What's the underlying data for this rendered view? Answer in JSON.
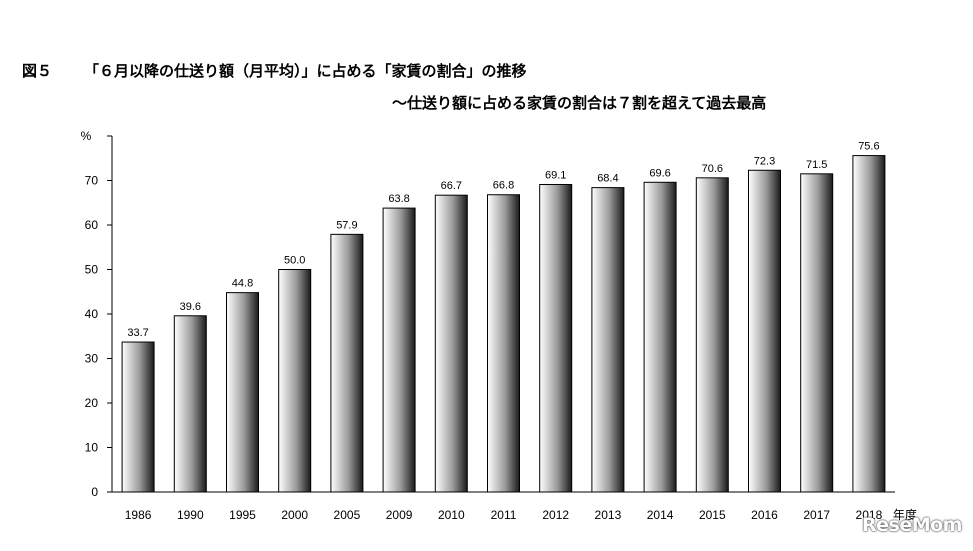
{
  "title": {
    "figure_label": "図５",
    "text": "「６月以降の仕送り額（月平均）」に占める「家賃の割合」の推移"
  },
  "subtitle": "～仕送り額に占める家賃の割合は７割を超えて過去最高",
  "watermark": "ReseMom",
  "colors": {
    "bar_dark": "#1a1a1a",
    "bar_light": "#ffffff",
    "axis": "#000000"
  },
  "chart_data": {
    "type": "bar",
    "ylabel": "%",
    "xlabel": "年度",
    "ylim": [
      0,
      80
    ],
    "yticks": [
      0,
      10,
      20,
      30,
      40,
      50,
      60,
      70
    ],
    "grid": false,
    "categories": [
      "1986",
      "1990",
      "1995",
      "2000",
      "2005",
      "2009",
      "2010",
      "2011",
      "2012",
      "2013",
      "2014",
      "2015",
      "2016",
      "2017",
      "2018"
    ],
    "values": [
      33.7,
      39.6,
      44.8,
      50.0,
      57.9,
      63.8,
      66.7,
      66.8,
      69.1,
      68.4,
      69.6,
      70.6,
      72.3,
      71.5,
      75.6
    ],
    "value_labels": [
      "33.7",
      "39.6",
      "44.8",
      "50.0",
      "57.9",
      "63.8",
      "66.7",
      "66.8",
      "69.1",
      "68.4",
      "69.6",
      "70.6",
      "72.3",
      "71.5",
      "75.6"
    ]
  }
}
